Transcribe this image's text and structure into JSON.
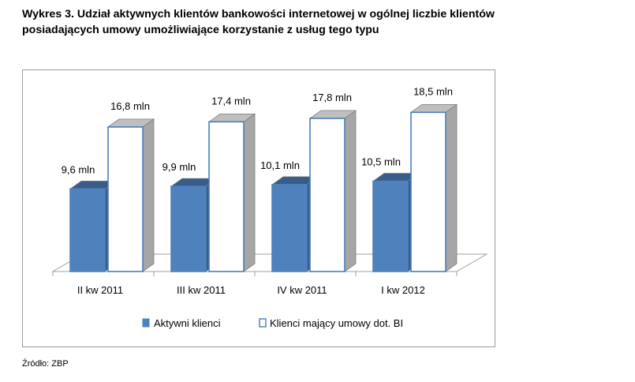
{
  "title_lines": [
    "Wykres 3. Udział aktywnych klientów bankowości internetowej w ogólnej liczbie klientów",
    "posiadających umowy umożliwiające korzystanie z usług tego typu"
  ],
  "source": "Źródło: ZBP",
  "colors": {
    "active": "#4f81bd",
    "active_top": "#385d8a",
    "clients": "#ffffff",
    "outline": "#4a7ebb",
    "side": "#a6a6a6",
    "top": "#bfbfbf"
  },
  "chart_data": {
    "type": "bar",
    "title": "",
    "xlabel": "",
    "ylabel": "",
    "categories": [
      "II kw 2011",
      "III kw 2011",
      "IV kw 2011",
      "I kw 2012"
    ],
    "series": [
      {
        "name": "Aktywni klienci",
        "values": [
          9.6,
          9.9,
          10.1,
          10.5
        ],
        "labels": [
          "9,6 mln",
          "9,9 mln",
          "10,1 mln",
          "10,5 mln"
        ]
      },
      {
        "name": "Klienci mający umowy dot. BI",
        "values": [
          16.8,
          17.4,
          17.8,
          18.5
        ],
        "labels": [
          "16,8 mln",
          "17,4 mln",
          "17,8 mln",
          "18,5 mln"
        ]
      }
    ],
    "ylim": [
      0,
      20
    ],
    "grid": false,
    "legend_position": "bottom"
  }
}
